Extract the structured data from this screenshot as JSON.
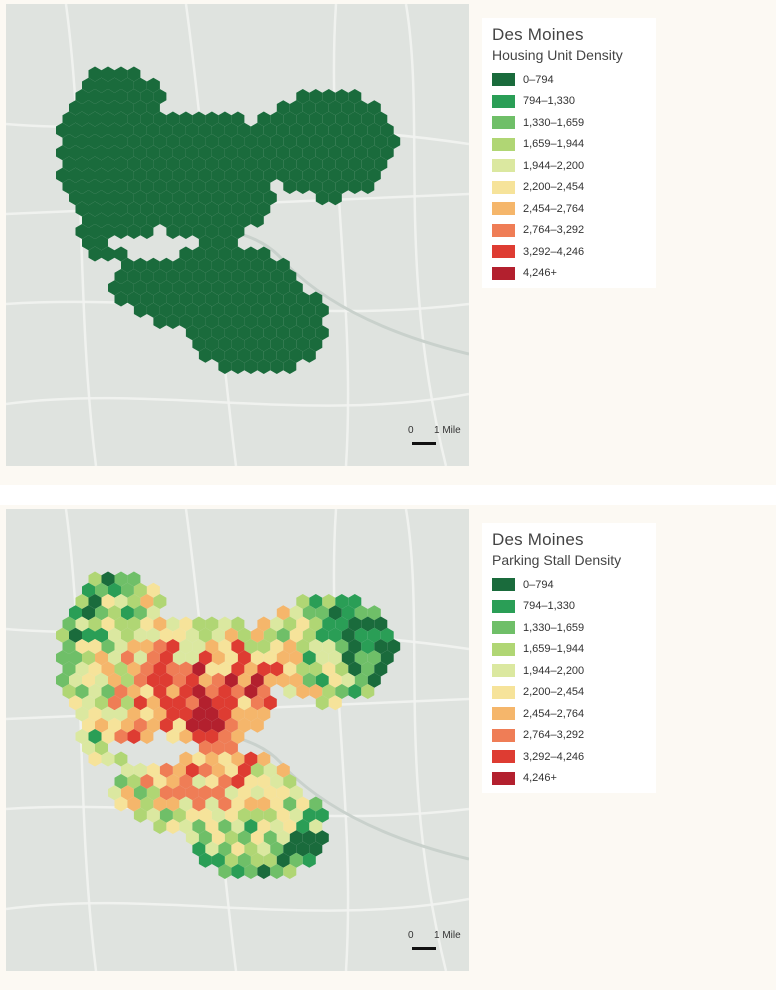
{
  "legend_bins": [
    {
      "label": "0–794",
      "color": "#1a6b3c"
    },
    {
      "label": "794–1,330",
      "color": "#2a9e56"
    },
    {
      "label": "1,330–1,659",
      "color": "#6fbf68"
    },
    {
      "label": "1,659–1,944",
      "color": "#b0d674"
    },
    {
      "label": "1,944–2,200",
      "color": "#dbe8a0"
    },
    {
      "label": "2,200–2,454",
      "color": "#f6e39a"
    },
    {
      "label": "2,454–2,764",
      "color": "#f5b66b"
    },
    {
      "label": "2,764–3,292",
      "color": "#ef7d56"
    },
    {
      "label": "3,292–4,246",
      "color": "#de3c32"
    },
    {
      "label": "4,246+",
      "color": "#b3202e"
    }
  ],
  "maps": [
    {
      "city": "Des Moines",
      "metric": "Housing Unit Density",
      "scale_zero": "0",
      "scale_label": "1 Mile"
    },
    {
      "city": "Des Moines",
      "metric": "Parking Stall Density",
      "scale_zero": "0",
      "scale_label": "1 Mile"
    }
  ],
  "colors": {
    "basemap": "#dfe3df",
    "panel_background": "#fcf9f3",
    "uniform_fill": "#1a6b3c"
  }
}
